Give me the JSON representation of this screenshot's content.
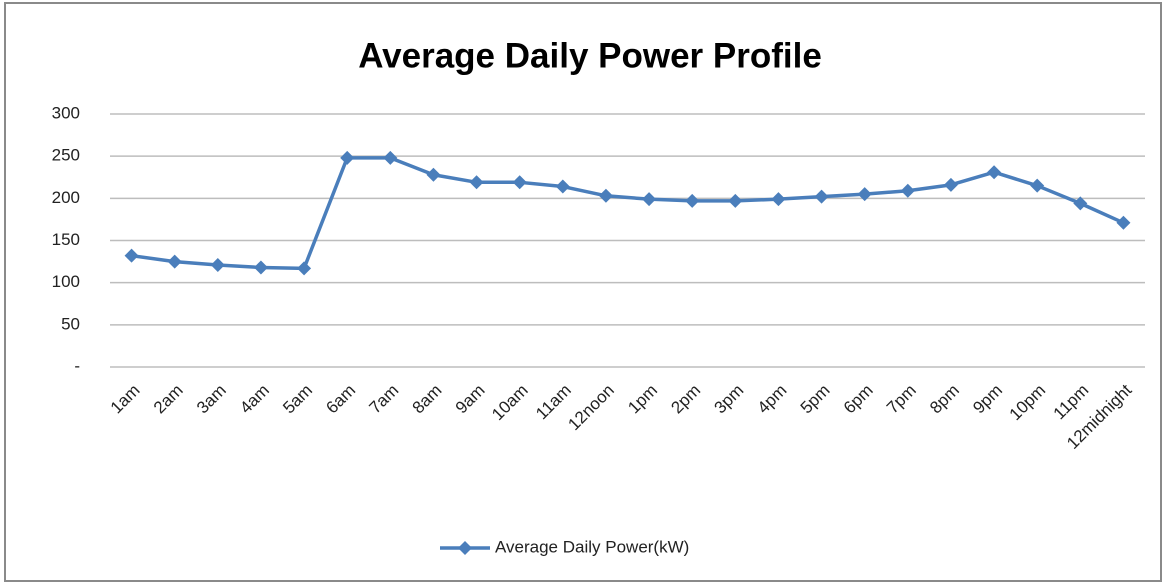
{
  "chart_data": {
    "type": "line",
    "title": "Average Daily Power Profile",
    "categories": [
      "1am",
      "2am",
      "3am",
      "4am",
      "5am",
      "6am",
      "7am",
      "8am",
      "9am",
      "10am",
      "11am",
      "12noon",
      "1pm",
      "2pm",
      "3pm",
      "4pm",
      "5pm",
      "6pm",
      "7pm",
      "8pm",
      "9pm",
      "10pm",
      "11pm",
      "12midnight"
    ],
    "series": [
      {
        "name": "Average Daily Power(kW)",
        "color": "#4a7ebb",
        "values": [
          132,
          125,
          121,
          118,
          117,
          248,
          248,
          228,
          219,
          219,
          214,
          203,
          199,
          197,
          197,
          199,
          202,
          205,
          209,
          216,
          231,
          215,
          194,
          171
        ]
      }
    ],
    "ylim": [
      0,
      300
    ],
    "yticks": [
      {
        "value": 0,
        "label": "-"
      },
      50,
      100,
      150,
      200,
      250,
      300
    ],
    "grid": true,
    "legend": "bottom"
  }
}
